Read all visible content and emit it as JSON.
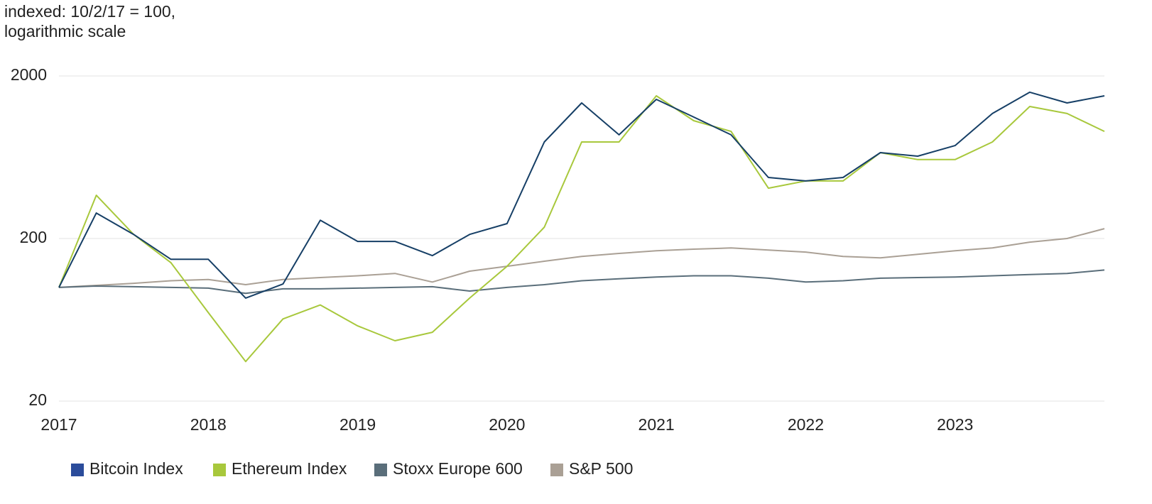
{
  "chart_data": {
    "type": "line",
    "ylabel": [
      "indexed: 10/2/17 = 100,",
      "logarithmic scale"
    ],
    "x": [
      2017,
      2017.25,
      2017.5,
      2017.75,
      2018,
      2018.25,
      2018.5,
      2018.75,
      2019,
      2019.25,
      2019.5,
      2019.75,
      2020,
      2020.25,
      2020.5,
      2020.75,
      2021,
      2021.25,
      2021.5,
      2021.75,
      2022,
      2022.25,
      2022.5,
      2022.75,
      2023,
      2023.25,
      2023.5,
      2023.75,
      2024
    ],
    "series": [
      {
        "name": "Bitcoin Index",
        "color": "#163f66",
        "legend_color": "#2b4c9b",
        "values": [
          100,
          287,
          212,
          149,
          149,
          86,
          105,
          259,
          192,
          192,
          157,
          212,
          247,
          785,
          1365,
          869,
          1435,
          1117,
          869,
          475,
          452,
          475,
          675,
          642,
          746,
          1175,
          1589,
          1365,
          1510
        ]
      },
      {
        "name": "Ethereum Index",
        "color": "#a8c83c",
        "values": [
          100,
          369,
          212,
          142,
          70,
          35,
          64,
          78,
          58,
          47,
          53,
          86,
          135,
          235,
          785,
          785,
          1510,
          1062,
          912,
          408,
          452,
          452,
          675,
          612,
          612,
          785,
          1298,
          1175,
          912
        ]
      },
      {
        "name": "Stoxx Europe 600",
        "color": "#5a6e7a",
        "values": [
          100,
          102,
          101,
          100,
          99,
          92,
          98,
          98,
          99,
          100,
          101,
          95,
          100,
          104,
          110,
          113,
          116,
          118,
          118,
          114,
          108,
          110,
          114,
          115,
          116,
          118,
          120,
          122,
          128
        ]
      },
      {
        "name": "S&P 500",
        "color": "#aaa095",
        "values": [
          100,
          103,
          106,
          110,
          112,
          104,
          112,
          115,
          118,
          122,
          108,
          126,
          135,
          145,
          155,
          162,
          168,
          172,
          175,
          170,
          165,
          155,
          152,
          160,
          168,
          175,
          190,
          200,
          230
        ]
      }
    ],
    "xlim": [
      2017,
      2024
    ],
    "xticks": [
      2017,
      2018,
      2019,
      2020,
      2021,
      2022,
      2023
    ],
    "ylim": [
      20,
      2000
    ],
    "yticks": [
      20,
      200,
      2000
    ],
    "yscale": "log",
    "grid": true,
    "legend": "bottom"
  }
}
